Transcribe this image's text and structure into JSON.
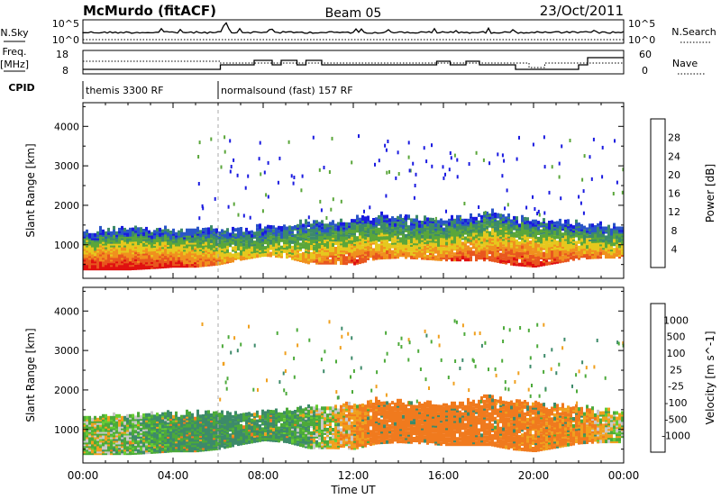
{
  "header": {
    "station": "McMurdo (fitACF)",
    "beam": "Beam 05",
    "date": "23/Oct/2011"
  },
  "top_panels": {
    "nsky_label": "N.Sky",
    "nsky_ticks": [
      "10^5",
      "10^0"
    ],
    "nsearch_label": "N.Search",
    "nsearch_ticks": [
      "10^5",
      "10^0"
    ],
    "freq_label_line1": "Freq.",
    "freq_label_line2": "[MHz]",
    "freq_ticks": [
      "18",
      "8"
    ],
    "nave_label": "Nave",
    "nave_ticks": [
      "60",
      "0"
    ],
    "cpid_label": "CPID",
    "cpid_segments": [
      {
        "text": "themis 3300 RF",
        "start_hour": 0
      },
      {
        "text": "normalsound (fast) 157 RF",
        "start_hour": 6.0
      }
    ]
  },
  "chart_data": [
    {
      "type": "heatmap",
      "title": "",
      "ylabel": "Slant Range [km]",
      "xlim": [
        0,
        24
      ],
      "ylim": [
        150,
        4600
      ],
      "yticks": [
        1000,
        2000,
        3000,
        4000
      ],
      "colorbar": {
        "label": "Power [dB]",
        "ticks": [
          "4",
          "8",
          "12",
          "16",
          "20",
          "24",
          "28"
        ],
        "bins": [
          0,
          4,
          8,
          12,
          16,
          20,
          24,
          28,
          32
        ],
        "colors": [
          "#1a1ae0",
          "#2a55c8",
          "#3d8a6a",
          "#5aa63a",
          "#e6c81e",
          "#f0901e",
          "#e8561e",
          "#e01010"
        ]
      },
      "profile": {
        "hours": [
          0,
          1,
          2,
          3,
          4,
          5,
          6,
          7,
          8,
          9,
          10,
          11,
          12,
          13,
          14,
          15,
          16,
          17,
          18,
          19,
          20,
          21,
          22,
          23,
          24
        ],
        "lower_km": [
          350,
          350,
          350,
          380,
          420,
          420,
          480,
          600,
          700,
          650,
          500,
          500,
          480,
          620,
          650,
          620,
          580,
          580,
          580,
          470,
          420,
          520,
          620,
          650,
          650
        ],
        "upper_km": [
          1300,
          1320,
          1330,
          1350,
          1340,
          1350,
          1350,
          1370,
          1400,
          1450,
          1550,
          1500,
          1600,
          1700,
          1650,
          1600,
          1600,
          1650,
          1800,
          1650,
          1600,
          1550,
          1500,
          1450,
          1400
        ],
        "peak_db": [
          30,
          30,
          30,
          29,
          28,
          26,
          22,
          20,
          18,
          20,
          22,
          24,
          26,
          24,
          22,
          22,
          24,
          26,
          26,
          28,
          28,
          26,
          24,
          22,
          22
        ]
      }
    },
    {
      "type": "heatmap",
      "title": "",
      "xlabel": "Time UT",
      "ylabel": "Slant Range [km]",
      "xlim": [
        0,
        24
      ],
      "ylim": [
        150,
        4600
      ],
      "yticks": [
        1000,
        2000,
        3000,
        4000
      ],
      "xticks": [
        "00:00",
        "04:00",
        "08:00",
        "12:00",
        "16:00",
        "20:00",
        "00:00"
      ],
      "colorbar": {
        "label": "Velocity [m s^-1]",
        "ticks": [
          "1000",
          "500",
          "100",
          "25",
          "-25",
          "-100",
          "-500",
          "-1000"
        ],
        "colors": [
          "#1a1ae0",
          "#2a55c8",
          "#3d8a6a",
          "#4caa3a",
          "#66cc33",
          "#c8c8c8",
          "#f0a01e",
          "#f07a1e",
          "#e8561e",
          "#e01010"
        ]
      },
      "profile": {
        "hours": [
          0,
          2,
          4,
          6,
          8,
          10,
          12,
          14,
          16,
          18,
          20,
          22,
          24
        ],
        "dominant_velocity": [
          0,
          50,
          100,
          150,
          120,
          60,
          -100,
          -250,
          -220,
          -180,
          -150,
          -120,
          20
        ]
      }
    }
  ]
}
